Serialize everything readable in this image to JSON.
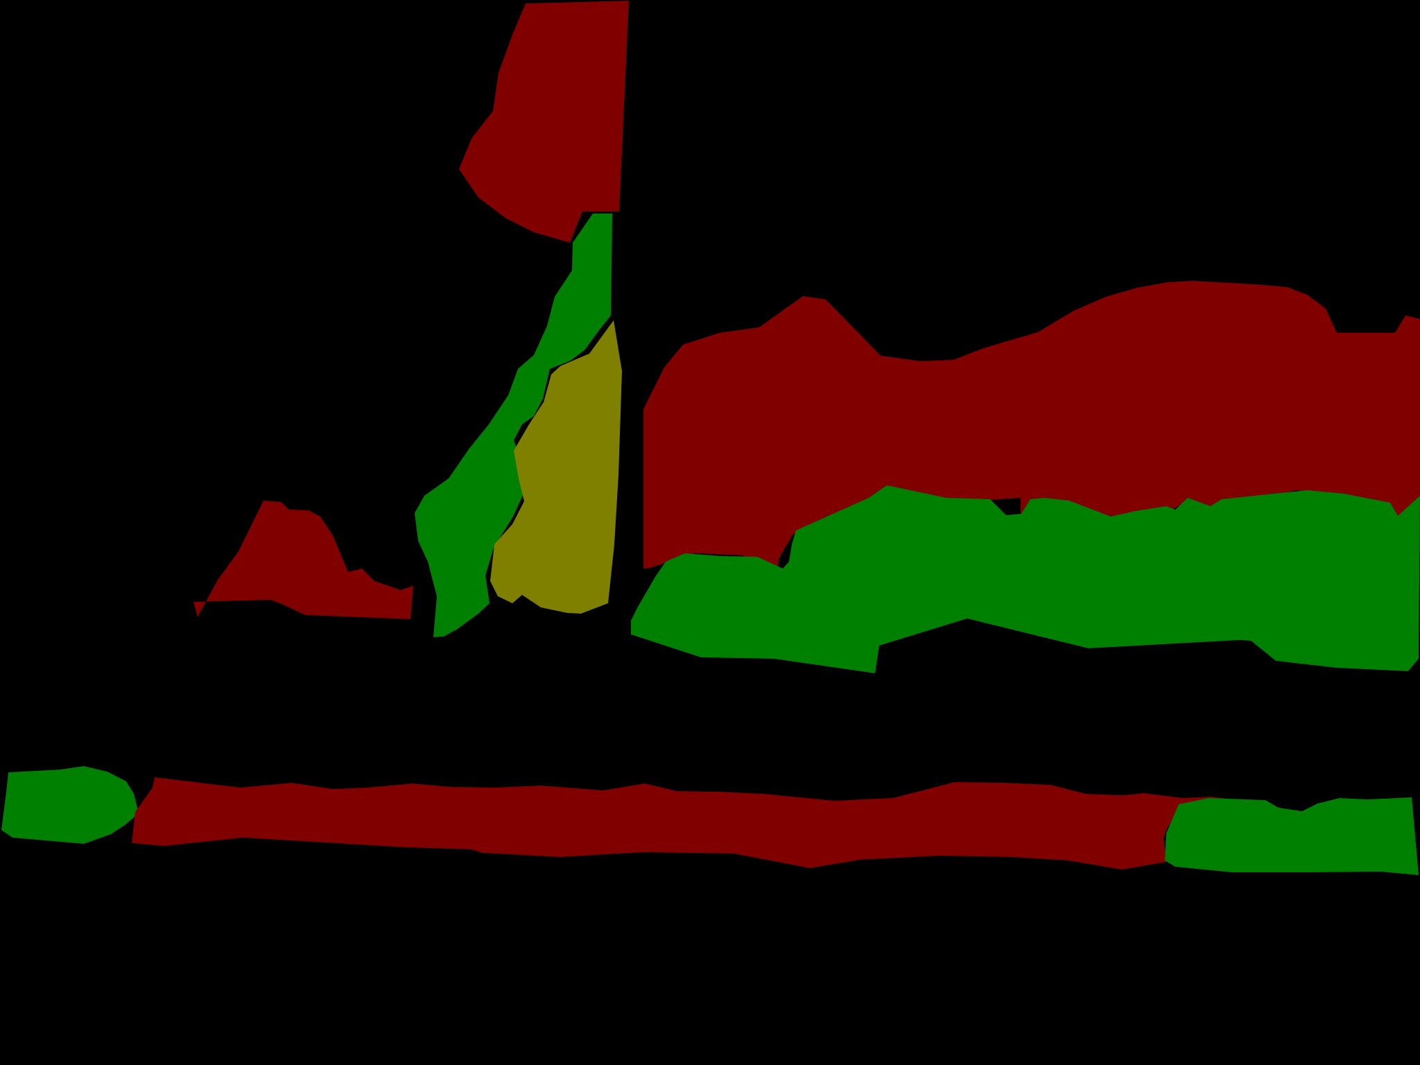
{
  "image": {
    "background_color": "#000000",
    "palette": {
      "dark_red": "#800000",
      "green": "#008000",
      "olive": "#808000"
    },
    "regions": [
      {
        "name": "region-red-upper-tall",
        "color": "dark_red"
      },
      {
        "name": "region-green-tall-strip",
        "color": "green"
      },
      {
        "name": "region-olive-tall-strip",
        "color": "olive"
      },
      {
        "name": "region-red-small-left",
        "color": "dark_red"
      },
      {
        "name": "region-red-large-right",
        "color": "dark_red"
      },
      {
        "name": "region-green-large-right",
        "color": "green"
      },
      {
        "name": "region-green-small-lower-left",
        "color": "green"
      },
      {
        "name": "region-red-long-band",
        "color": "dark_red"
      },
      {
        "name": "region-green-lower-right",
        "color": "green"
      }
    ]
  }
}
